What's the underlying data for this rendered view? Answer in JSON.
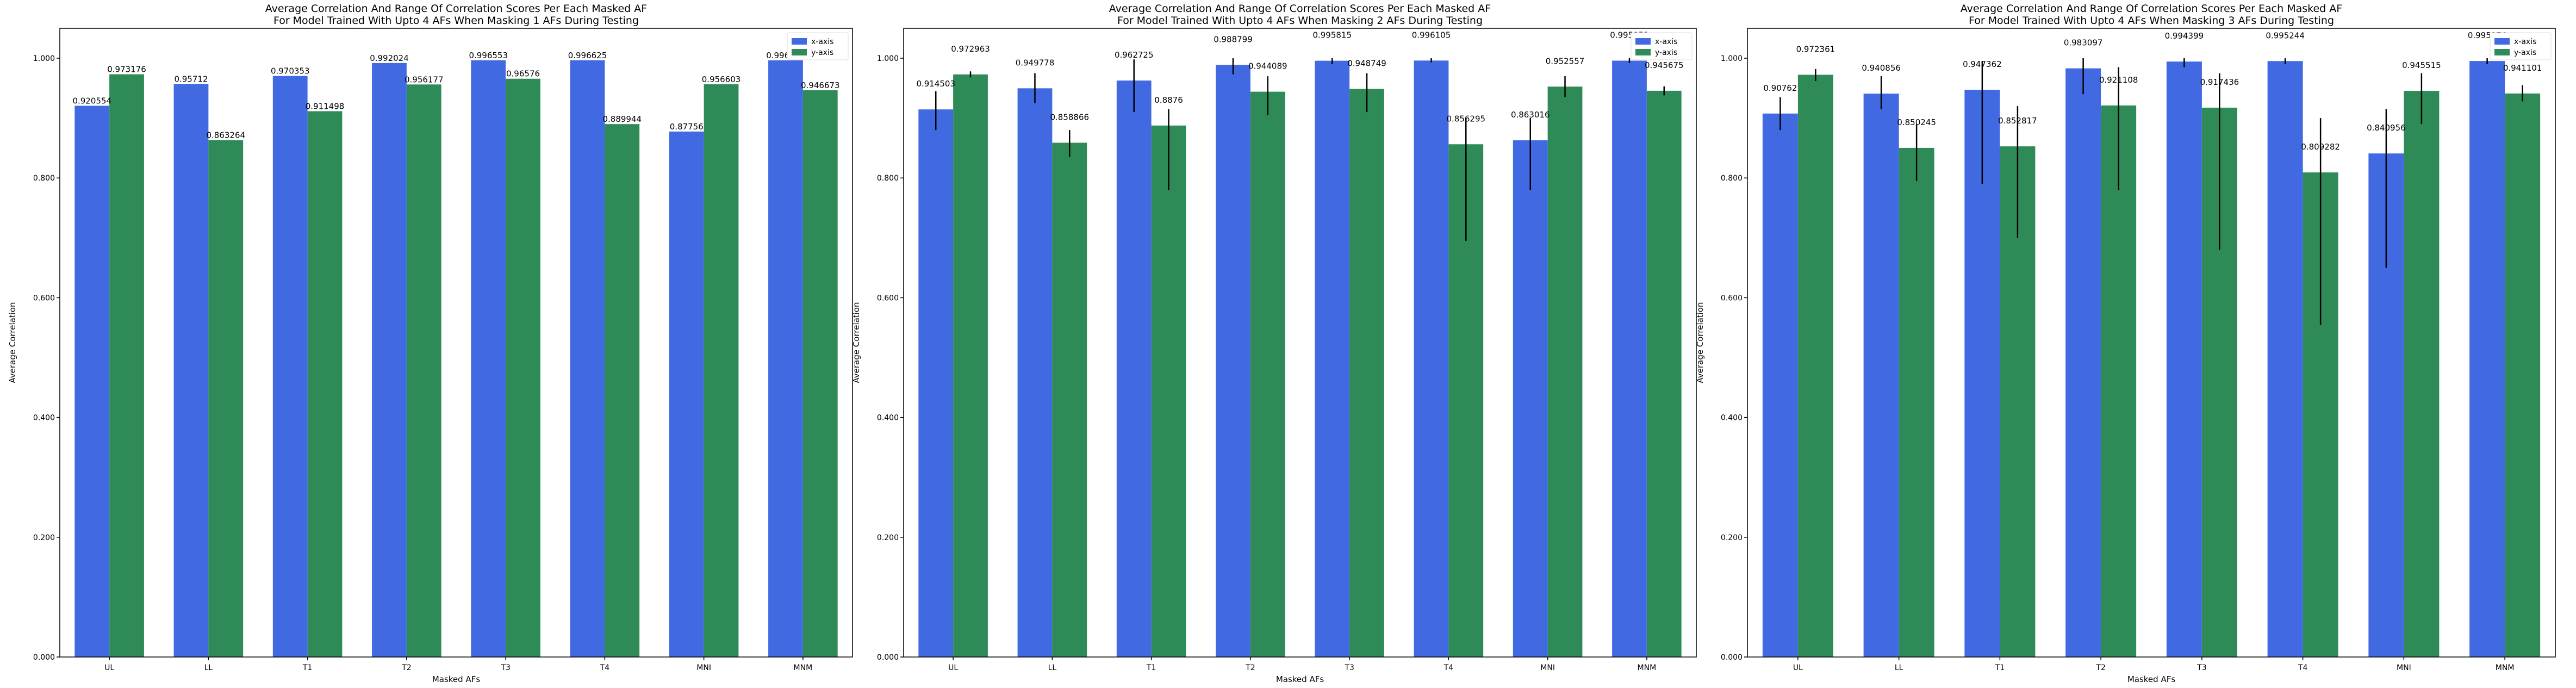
{
  "colors": {
    "x_axis": "#4169e1",
    "y_axis": "#2e8b57",
    "error_bar": "#000000"
  },
  "chart_data": [
    {
      "type": "bar",
      "title_line1": "Average Correlation And Range Of Correlation Scores Per Each Masked AF",
      "title_line2": "For Model Trained With Upto 4 AFs When Masking 1 AFs During Testing",
      "xlabel": "Masked AFs",
      "ylabel": "Average Correlation",
      "ylim": [
        0,
        1.05
      ],
      "yticks": [
        "0.000",
        "0.200",
        "0.400",
        "0.600",
        "0.800",
        "1.000"
      ],
      "ytick_values": [
        0,
        0.2,
        0.4,
        0.6,
        0.8,
        1.0
      ],
      "categories": [
        "UL",
        "LL",
        "T1",
        "T2",
        "T3",
        "T4",
        "MNI",
        "MNM"
      ],
      "legend": "top-right",
      "series": [
        {
          "name": "x-axis",
          "values": [
            0.920554,
            0.95712,
            0.970353,
            0.992024,
            0.996553,
            0.996625,
            0.87756,
            0.996408
          ],
          "labels": [
            "0.920554",
            "0.95712",
            "0.970353",
            "0.992024",
            "0.996553",
            "0.996625",
            "0.87756",
            "0.996408"
          ],
          "err_low": null,
          "err_high": null
        },
        {
          "name": "y-axis",
          "values": [
            0.973176,
            0.863264,
            0.911498,
            0.956177,
            0.96576,
            0.889944,
            0.956603,
            0.946673
          ],
          "labels": [
            "0.973176",
            "0.863264",
            "0.911498",
            "0.956177",
            "0.96576",
            "0.889944",
            "0.956603",
            "0.946673"
          ],
          "err_low": null,
          "err_high": null
        }
      ]
    },
    {
      "type": "bar",
      "title_line1": "Average Correlation And Range Of Correlation Scores Per Each Masked AF",
      "title_line2": "For Model Trained With Upto 4 AFs When Masking 2 AFs During Testing",
      "xlabel": "Masked AFs",
      "ylabel": "Average Correlation",
      "ylim": [
        0,
        1.05
      ],
      "yticks": [
        "0.000",
        "0.200",
        "0.400",
        "0.600",
        "0.800",
        "1.000"
      ],
      "ytick_values": [
        0,
        0.2,
        0.4,
        0.6,
        0.8,
        1.0
      ],
      "categories": [
        "UL",
        "LL",
        "T1",
        "T2",
        "T3",
        "T4",
        "MNI",
        "MNM"
      ],
      "legend": "top-right",
      "series": [
        {
          "name": "x-axis",
          "values": [
            0.914503,
            0.949778,
            0.962725,
            0.988799,
            0.995815,
            0.996105,
            0.863016,
            0.995951
          ],
          "labels": [
            "0.914503",
            "0.949778",
            "0.962725",
            "0.988799",
            "0.995815",
            "0.996105",
            "0.863016",
            "0.995951"
          ],
          "err_low": [
            0.88,
            0.925,
            0.91,
            0.973,
            0.99,
            0.993,
            0.78,
            0.992
          ],
          "err_high": [
            0.945,
            0.975,
            0.998,
            1.0,
            1.0,
            1.0,
            0.9,
            1.0
          ]
        },
        {
          "name": "y-axis",
          "values": [
            0.972963,
            0.858866,
            0.8876,
            0.944089,
            0.948749,
            0.856295,
            0.952557,
            0.945675
          ],
          "labels": [
            "0.972963",
            "0.858866",
            "0.8876",
            "0.944089",
            "0.948749",
            "0.856295",
            "0.952557",
            "0.945675"
          ],
          "err_low": [
            0.968,
            0.835,
            0.78,
            0.905,
            0.91,
            0.695,
            0.935,
            0.938
          ],
          "err_high": [
            0.978,
            0.88,
            0.915,
            0.97,
            0.975,
            0.9,
            0.97,
            0.953
          ]
        }
      ]
    },
    {
      "type": "bar",
      "title_line1": "Average Correlation And Range Of Correlation Scores Per Each Masked AF",
      "title_line2": "For Model Trained With Upto 4 AFs When Masking 3 AFs During Testing",
      "xlabel": "Masked AFs",
      "ylabel": "Average Correlation",
      "ylim": [
        0,
        1.05
      ],
      "yticks": [
        "0.000",
        "0.200",
        "0.400",
        "0.600",
        "0.800",
        "1.000"
      ],
      "ytick_values": [
        0,
        0.2,
        0.4,
        0.6,
        0.8,
        1.0
      ],
      "categories": [
        "UL",
        "LL",
        "T1",
        "T2",
        "T3",
        "T4",
        "MNI",
        "MNM"
      ],
      "legend": "top-right",
      "series": [
        {
          "name": "x-axis",
          "values": [
            0.90762,
            0.940856,
            0.947362,
            0.983097,
            0.994399,
            0.995244,
            0.840956,
            0.995376
          ],
          "labels": [
            "0.90762",
            "0.940856",
            "0.947362",
            "0.983097",
            "0.994399",
            "0.995244",
            "0.840956",
            "0.995376"
          ],
          "err_low": [
            0.88,
            0.915,
            0.79,
            0.94,
            0.985,
            0.99,
            0.65,
            0.99
          ],
          "err_high": [
            0.935,
            0.97,
            0.995,
            1.0,
            1.0,
            1.0,
            0.915,
            1.0
          ]
        },
        {
          "name": "y-axis",
          "values": [
            0.972361,
            0.850245,
            0.852817,
            0.921108,
            0.917436,
            0.809282,
            0.945515,
            0.941101
          ],
          "labels": [
            "0.972361",
            "0.850245",
            "0.852817",
            "0.921108",
            "0.917436",
            "0.809282",
            "0.945515",
            "0.941101"
          ],
          "err_low": [
            0.962,
            0.795,
            0.7,
            0.78,
            0.68,
            0.555,
            0.89,
            0.928
          ],
          "err_high": [
            0.982,
            0.89,
            0.92,
            0.985,
            0.975,
            0.9,
            0.975,
            0.955
          ]
        }
      ]
    }
  ]
}
